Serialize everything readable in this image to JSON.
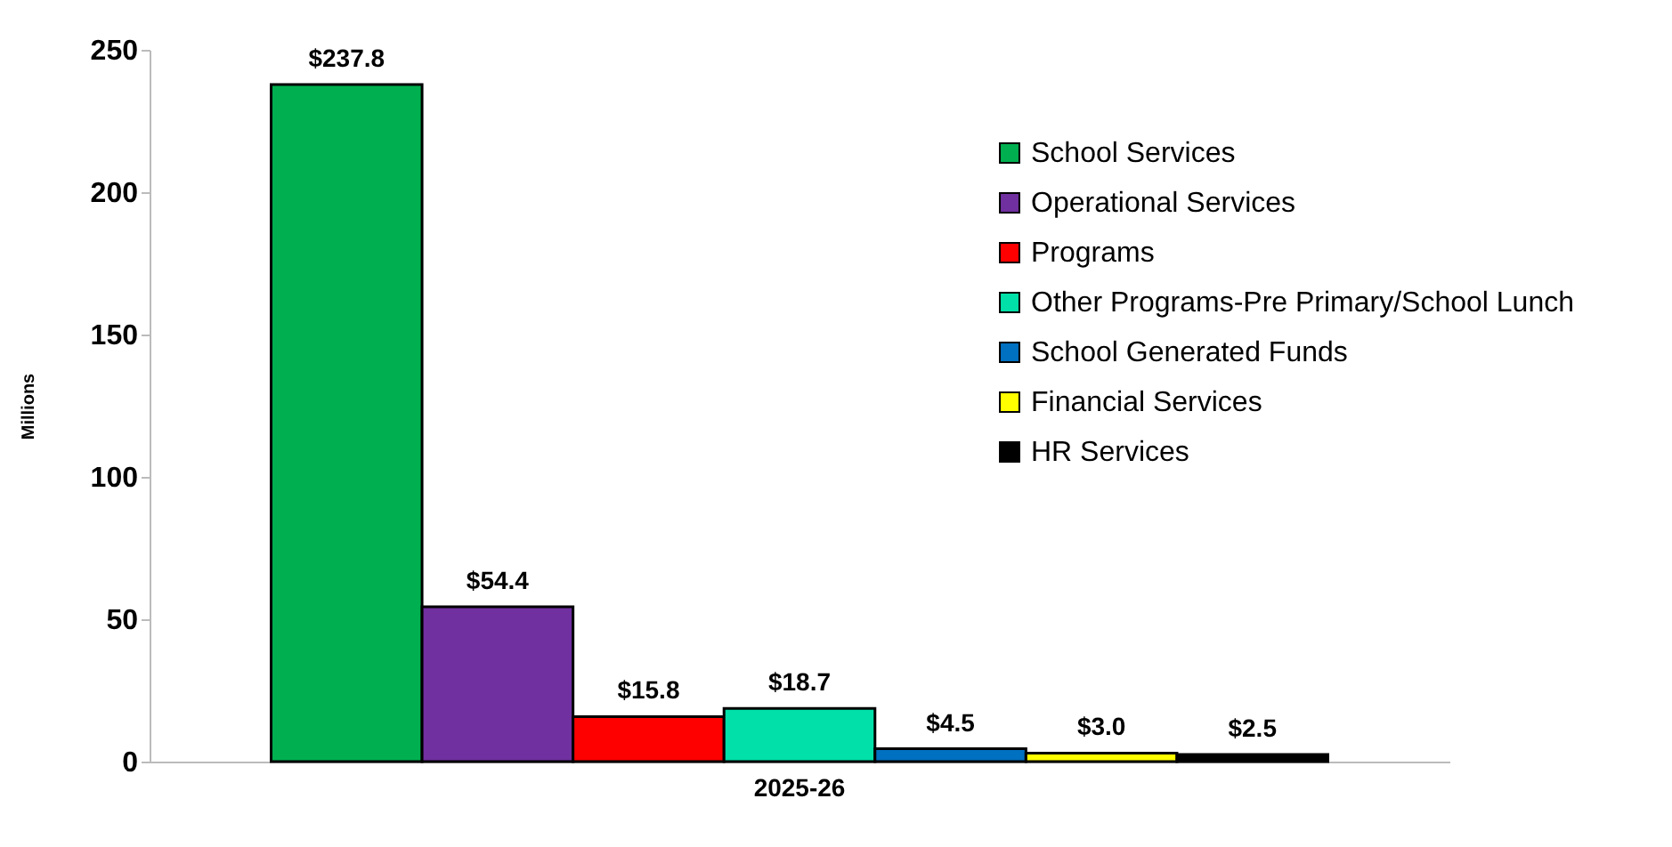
{
  "chart_data": {
    "type": "bar",
    "ylabel": "Millions",
    "categories": [
      "2025-26"
    ],
    "series": [
      {
        "name": "School Services",
        "color": "#00b050",
        "values": [
          237.8
        ],
        "value_labels": [
          "$237.8"
        ]
      },
      {
        "name": "Operational Services",
        "color": "#7030a0",
        "values": [
          54.4
        ],
        "value_labels": [
          "$54.4"
        ]
      },
      {
        "name": "Programs",
        "color": "#ff0000",
        "values": [
          15.8
        ],
        "value_labels": [
          "$15.8"
        ]
      },
      {
        "name": "Other Programs-Pre Primary/School Lunch",
        "color": "#00e0a8",
        "values": [
          18.7
        ],
        "value_labels": [
          "$18.7"
        ]
      },
      {
        "name": "School Generated Funds",
        "color": "#0070c0",
        "values": [
          4.5
        ],
        "value_labels": [
          "$4.5"
        ]
      },
      {
        "name": "Financial Services",
        "color": "#ffff00",
        "values": [
          3.0
        ],
        "value_labels": [
          "$3.0"
        ]
      },
      {
        "name": "HR Services",
        "color": "#000000",
        "values": [
          2.5
        ],
        "value_labels": [
          "$2.5"
        ]
      }
    ],
    "ylim": [
      0,
      250
    ],
    "yticks": [
      0,
      50,
      100,
      150,
      200,
      250
    ],
    "grid": false,
    "legend": "top right"
  }
}
